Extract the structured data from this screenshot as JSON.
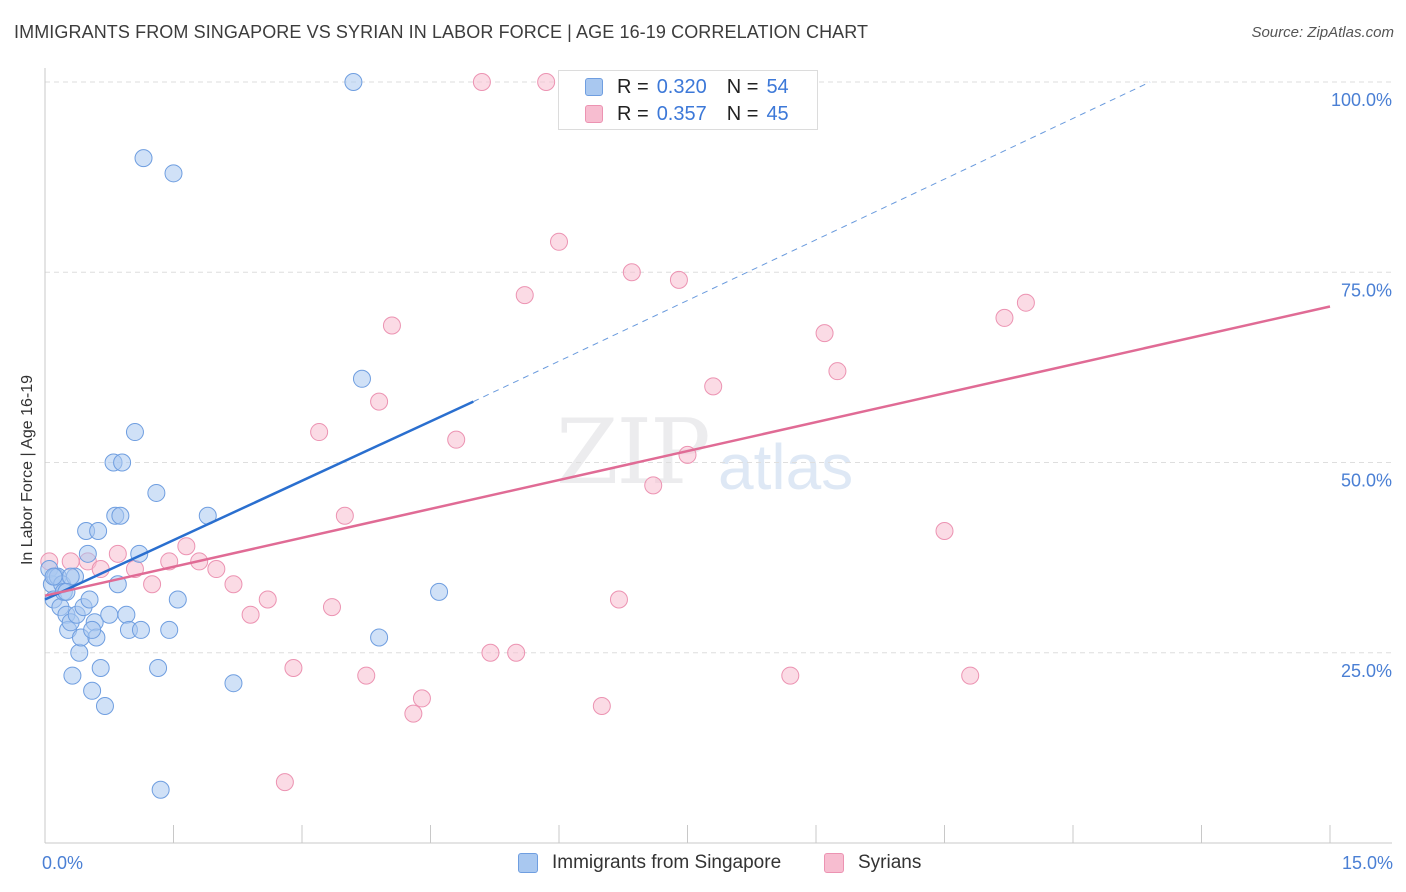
{
  "title": "IMMIGRANTS FROM SINGAPORE VS SYRIAN IN LABOR FORCE | AGE 16-19 CORRELATION CHART",
  "source": "Source: ZipAtlas.com",
  "watermark": {
    "part1": "ZIP",
    "part2": "atlas"
  },
  "legend": {
    "singapore": {
      "r_label": "R =",
      "r_value": "0.320",
      "n_label": "N =",
      "n_value": "54"
    },
    "syrians": {
      "r_label": "R =",
      "r_value": "0.357",
      "n_label": "N =",
      "n_value": "45"
    }
  },
  "bottom_legend": {
    "singapore": "Immigrants from Singapore",
    "syrians": "Syrians"
  },
  "colors": {
    "singapore_fill": "#a9c8f0",
    "singapore_stroke": "#6f9ee0",
    "singapore_line": "#2a6fcf",
    "syrians_fill": "#f7bdd0",
    "syrians_stroke": "#ec93b2",
    "syrians_line": "#e06b95",
    "grid": "#dedede",
    "tick_text": "#4a7fd4"
  },
  "chart_data": {
    "type": "scatter",
    "title": "IMMIGRANTS FROM SINGAPORE VS SYRIAN IN LABOR FORCE | AGE 16-19 CORRELATION CHART",
    "xlabel": "",
    "ylabel": "In Labor Force | Age 16-19",
    "xlim": [
      0,
      15
    ],
    "ylim": [
      0,
      100
    ],
    "x_tick_labels": [
      "0.0%",
      "15.0%"
    ],
    "y_ticks": [
      25,
      50,
      75,
      100
    ],
    "y_tick_labels": [
      "25.0%",
      "50.0%",
      "75.0%",
      "100.0%"
    ],
    "series": [
      {
        "name": "Immigrants from Singapore",
        "r": 0.32,
        "n": 54,
        "trend": {
          "x": [
            0.0,
            5.0
          ],
          "y": [
            32.0,
            58.0
          ],
          "dashed_extension": {
            "x": [
              5.0,
              12.9
            ],
            "y": [
              58.0,
              100.0
            ]
          }
        },
        "points": [
          [
            0.05,
            36
          ],
          [
            0.08,
            34
          ],
          [
            0.1,
            32
          ],
          [
            0.12,
            35
          ],
          [
            0.15,
            35
          ],
          [
            0.18,
            31
          ],
          [
            0.2,
            34
          ],
          [
            0.22,
            33
          ],
          [
            0.25,
            30
          ],
          [
            0.27,
            28
          ],
          [
            0.3,
            29
          ],
          [
            0.32,
            22
          ],
          [
            0.35,
            35
          ],
          [
            0.37,
            30
          ],
          [
            0.4,
            25
          ],
          [
            0.42,
            27
          ],
          [
            0.45,
            31
          ],
          [
            0.48,
            41
          ],
          [
            0.5,
            38
          ],
          [
            0.52,
            32
          ],
          [
            0.55,
            20
          ],
          [
            0.58,
            29
          ],
          [
            0.6,
            27
          ],
          [
            0.62,
            41
          ],
          [
            0.65,
            23
          ],
          [
            0.7,
            18
          ],
          [
            0.75,
            30
          ],
          [
            0.8,
            50
          ],
          [
            0.82,
            43
          ],
          [
            0.85,
            34
          ],
          [
            0.88,
            43
          ],
          [
            0.95,
            30
          ],
          [
            0.98,
            28
          ],
          [
            1.05,
            54
          ],
          [
            1.1,
            38
          ],
          [
            1.12,
            28
          ],
          [
            1.15,
            90
          ],
          [
            1.3,
            46
          ],
          [
            1.32,
            23
          ],
          [
            1.35,
            7
          ],
          [
            1.45,
            28
          ],
          [
            1.5,
            88
          ],
          [
            1.55,
            32
          ],
          [
            1.9,
            43
          ],
          [
            2.2,
            21
          ],
          [
            3.6,
            100
          ],
          [
            3.7,
            61
          ],
          [
            3.9,
            27
          ],
          [
            4.6,
            33
          ],
          [
            0.1,
            35
          ],
          [
            0.3,
            35
          ],
          [
            0.55,
            28
          ],
          [
            0.9,
            50
          ],
          [
            0.25,
            33
          ]
        ]
      },
      {
        "name": "Syrians",
        "r": 0.357,
        "n": 45,
        "trend": {
          "x": [
            0.0,
            15.0
          ],
          "y": [
            32.5,
            70.5
          ]
        },
        "points": [
          [
            0.05,
            37
          ],
          [
            0.3,
            37
          ],
          [
            0.5,
            37
          ],
          [
            0.65,
            36
          ],
          [
            0.85,
            38
          ],
          [
            1.05,
            36
          ],
          [
            1.25,
            34
          ],
          [
            1.45,
            37
          ],
          [
            1.65,
            39
          ],
          [
            1.8,
            37
          ],
          [
            2.0,
            36
          ],
          [
            2.2,
            34
          ],
          [
            2.4,
            30
          ],
          [
            2.6,
            32
          ],
          [
            2.9,
            23
          ],
          [
            2.8,
            8
          ],
          [
            3.2,
            54
          ],
          [
            3.35,
            31
          ],
          [
            3.5,
            43
          ],
          [
            3.75,
            22
          ],
          [
            3.9,
            58
          ],
          [
            4.05,
            68
          ],
          [
            4.3,
            17
          ],
          [
            4.4,
            19
          ],
          [
            4.8,
            53
          ],
          [
            5.1,
            100
          ],
          [
            5.2,
            25
          ],
          [
            5.5,
            25
          ],
          [
            5.6,
            72
          ],
          [
            5.85,
            100
          ],
          [
            6.0,
            79
          ],
          [
            6.5,
            18
          ],
          [
            6.7,
            32
          ],
          [
            6.85,
            75
          ],
          [
            7.1,
            47
          ],
          [
            7.4,
            74
          ],
          [
            7.5,
            51
          ],
          [
            7.8,
            60
          ],
          [
            8.7,
            22
          ],
          [
            9.1,
            67
          ],
          [
            9.25,
            62
          ],
          [
            10.5,
            41
          ],
          [
            10.8,
            22
          ],
          [
            11.2,
            69
          ],
          [
            11.45,
            71
          ]
        ]
      }
    ]
  }
}
